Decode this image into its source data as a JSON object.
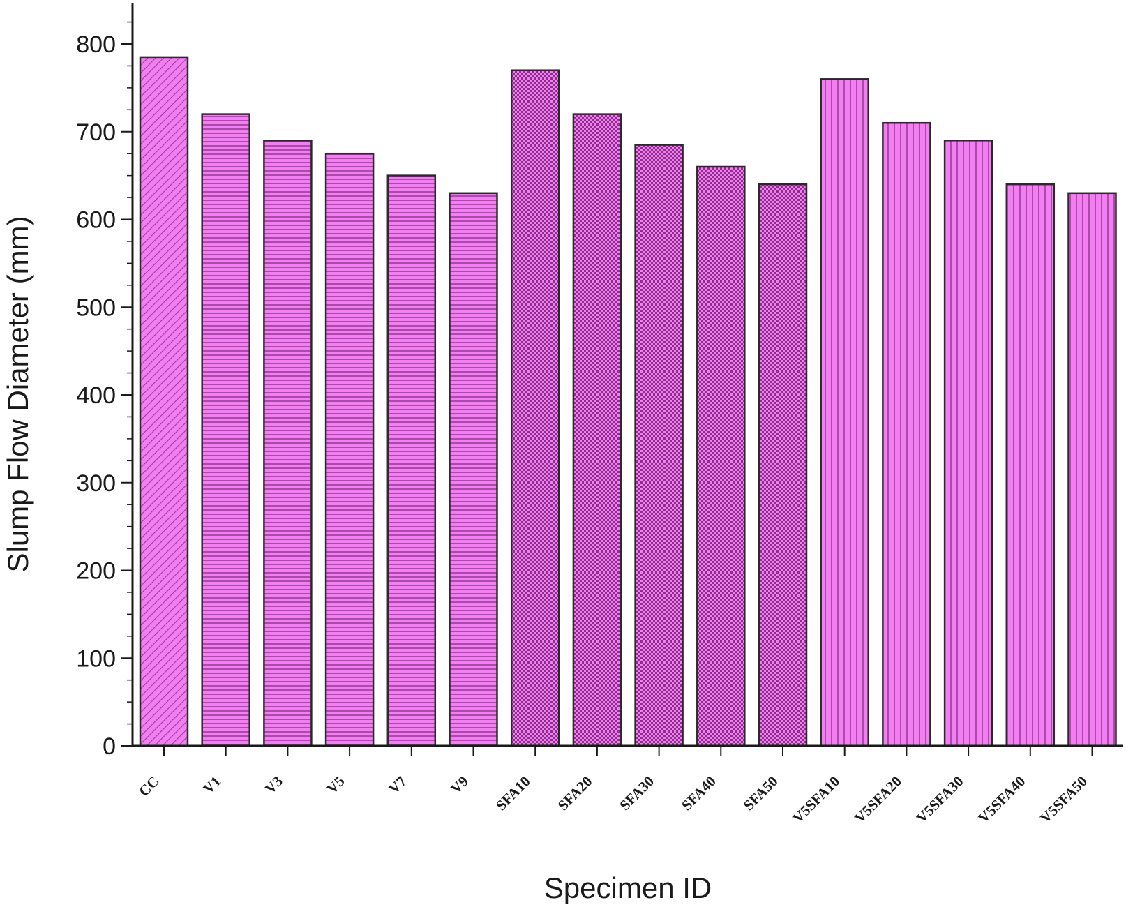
{
  "chart_data": {
    "type": "bar",
    "xlabel": "Specimen ID",
    "ylabel": "Slump Flow Diameter (mm)",
    "ylim": [
      0,
      850
    ],
    "yticks": [
      0,
      100,
      200,
      300,
      400,
      500,
      600,
      700,
      800
    ],
    "grid": false,
    "legend": "none",
    "categories": [
      "CC",
      "V1",
      "V3",
      "V5",
      "V7",
      "V9",
      "SFA10",
      "SFA20",
      "SFA30",
      "SFA40",
      "SFA50",
      "V5SFA10",
      "V5SFA20",
      "V5SFA30",
      "V5SFA40",
      "V5SFA50"
    ],
    "values": [
      785,
      720,
      690,
      675,
      650,
      630,
      770,
      720,
      685,
      660,
      640,
      760,
      710,
      690,
      640,
      630
    ],
    "patterns": [
      "diagonal",
      "horizontal",
      "horizontal",
      "horizontal",
      "horizontal",
      "horizontal",
      "crosshatch",
      "crosshatch",
      "crosshatch",
      "crosshatch",
      "crosshatch",
      "vertical",
      "vertical",
      "vertical",
      "vertical",
      "vertical"
    ],
    "colors": {
      "bar_fill": "#f27ef2",
      "hatch": "#9a3c9a",
      "bar_edge": "#2a2a2a",
      "axis": "#1a1a1a"
    }
  }
}
